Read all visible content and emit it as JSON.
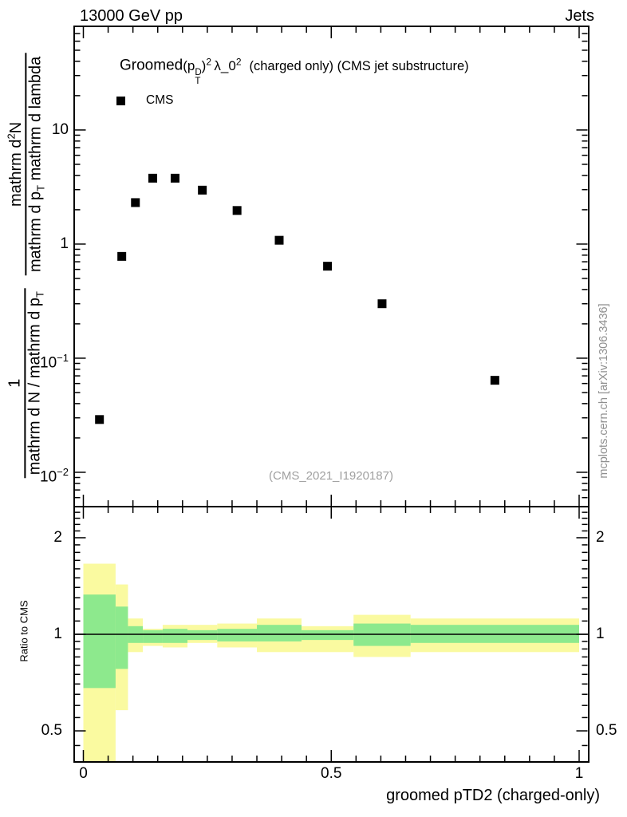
{
  "header": {
    "left": "13000 GeV pp",
    "right": "Jets"
  },
  "title": {
    "full": "Groomed (p_T^D)^2 λ_0^2 (charged only) (CMS jet substructure)",
    "prefix": "Groomed",
    "p_open": "(p",
    "p_sup": "D",
    "p_sub": "T",
    "p_close": ")",
    "p_close_sup": "2",
    "lambda": "λ_0",
    "lambda_sup": "2",
    "suffix": "(charged only) (CMS jet substructure)"
  },
  "legend": {
    "label": "CMS",
    "marker": "filled-square",
    "marker_color": "#000000"
  },
  "watermark": "(CMS_2021_I1920187)",
  "credit": "mcplots.cern.ch [arXiv:1306.3436]",
  "axes": {
    "x": {
      "title": "groomed pTD2 (charged-only)",
      "tick_labels": [
        {
          "text": "0",
          "value": 0
        },
        {
          "text": "0.5",
          "value": 0.5
        },
        {
          "text": "1",
          "value": 1
        }
      ],
      "majors": [
        0,
        0.5,
        1
      ],
      "minor_step": 0.05,
      "range": [
        0,
        1
      ]
    },
    "y_main": {
      "frac1": {
        "num": "1",
        "den": "mathrm d N / mathrm d p",
        "den_sub": "T"
      },
      "frac2": {
        "num_pre": "mathrm d",
        "num_sup": "2",
        "num_post": "N",
        "den_pre": "mathrm d p",
        "den_sub": "T",
        "den_rest": " mathrm d lambda"
      },
      "tick_labels": [
        {
          "text": "10",
          "exp": "",
          "value": 10
        },
        {
          "text": "1",
          "exp": "",
          "value": 1
        },
        {
          "text": "10",
          "exp": "−1",
          "value": 0.1
        },
        {
          "text": "10",
          "exp": "−2",
          "value": 0.01
        }
      ],
      "majors": [
        10,
        1,
        0.1,
        0.01
      ],
      "minors": [
        0.005,
        0.006,
        0.007,
        0.008,
        0.009,
        0.02,
        0.03,
        0.04,
        0.05,
        0.06,
        0.07,
        0.08,
        0.09,
        0.2,
        0.3,
        0.4,
        0.5,
        0.6,
        0.7,
        0.8,
        0.9,
        2,
        3,
        4,
        5,
        6,
        7,
        8,
        9,
        20,
        30,
        40,
        50,
        60,
        70,
        80
      ]
    },
    "y_ratio": {
      "label": "Ratio to CMS",
      "tick_labels": [
        {
          "text": "2",
          "value": 2
        },
        {
          "text": "1",
          "value": 1
        },
        {
          "text": "0.5",
          "value": 0.5
        }
      ],
      "majors": [
        2,
        1,
        0.5
      ],
      "minors": [
        0.45,
        0.55,
        0.6,
        0.65,
        0.7,
        0.75,
        0.8,
        0.85,
        0.9,
        0.95,
        1.1,
        1.2,
        1.3,
        1.4,
        1.5,
        1.6,
        1.7,
        1.8,
        1.9,
        2.1,
        2.2,
        2.3,
        2.4
      ]
    }
  },
  "chart_data": [
    {
      "type": "scatter",
      "name": "main-panel",
      "title": "Groomed (p_T^D)^2 λ_0^2 (charged only) (CMS jet substructure)",
      "xlabel": "groomed pTD2 (charged-only)",
      "ylabel": "(1 / (dN/dp_T)) d2N / (dp_T dlambda)",
      "xlim": [
        -0.0193,
        1.0185
      ],
      "ylim": [
        0.005,
        81
      ],
      "yscale": "log",
      "grid": false,
      "legend_position": "top-left",
      "series": [
        {
          "name": "CMS",
          "marker": "filled-square",
          "color": "#000000",
          "points": [
            [
              0.0325,
              0.029
            ],
            [
              0.0775,
              0.78
            ],
            [
              0.105,
              2.31
            ],
            [
              0.14,
              3.78
            ],
            [
              0.185,
              3.78
            ],
            [
              0.24,
              2.97
            ],
            [
              0.31,
              1.97
            ],
            [
              0.395,
              1.08
            ],
            [
              0.4925,
              0.64
            ],
            [
              0.6025,
              0.3
            ],
            [
              0.83,
              0.064
            ]
          ]
        }
      ]
    },
    {
      "type": "ratio-bands",
      "name": "ratio-panel",
      "ylabel": "Ratio to CMS",
      "ylim": [
        0.4,
        2.5
      ],
      "yscale": "log",
      "reference_line": 1,
      "colors": {
        "outer": "#fafaa0",
        "inner": "#8de98d"
      },
      "bins": [
        {
          "x": [
            0,
            0.065
          ],
          "outer": [
            0.3,
            1.66
          ],
          "inner": [
            0.68,
            1.33
          ]
        },
        {
          "x": [
            0.065,
            0.09
          ],
          "outer": [
            0.58,
            1.43
          ],
          "inner": [
            0.78,
            1.22
          ]
        },
        {
          "x": [
            0.09,
            0.12
          ],
          "outer": [
            0.88,
            1.12
          ],
          "inner": [
            0.94,
            1.06
          ]
        },
        {
          "x": [
            0.12,
            0.16
          ],
          "outer": [
            0.92,
            1.04
          ],
          "inner": [
            0.94,
            1.03
          ]
        },
        {
          "x": [
            0.16,
            0.21
          ],
          "outer": [
            0.91,
            1.07
          ],
          "inner": [
            0.94,
            1.04
          ]
        },
        {
          "x": [
            0.21,
            0.27
          ],
          "outer": [
            0.94,
            1.07
          ],
          "inner": [
            0.96,
            1.03
          ]
        },
        {
          "x": [
            0.27,
            0.35
          ],
          "outer": [
            0.91,
            1.08
          ],
          "inner": [
            0.95,
            1.04
          ]
        },
        {
          "x": [
            0.35,
            0.44
          ],
          "outer": [
            0.88,
            1.12
          ],
          "inner": [
            0.95,
            1.07
          ]
        },
        {
          "x": [
            0.44,
            0.545
          ],
          "outer": [
            0.88,
            1.06
          ],
          "inner": [
            0.96,
            1.03
          ]
        },
        {
          "x": [
            0.545,
            0.66
          ],
          "outer": [
            0.85,
            1.15
          ],
          "inner": [
            0.92,
            1.08
          ]
        },
        {
          "x": [
            0.66,
            1.0
          ],
          "outer": [
            0.88,
            1.12
          ],
          "inner": [
            0.94,
            1.07
          ]
        }
      ]
    }
  ]
}
